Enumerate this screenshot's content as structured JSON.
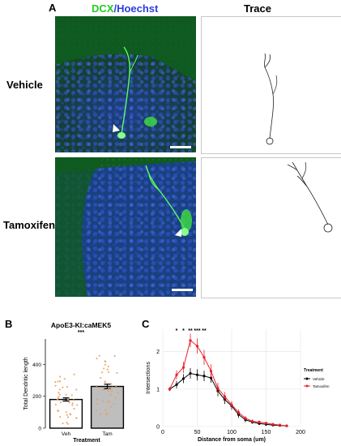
{
  "panel_a": {
    "letter": "A",
    "stain_label_green": "DCX",
    "stain_label_sep": "/",
    "stain_label_blue": "Hoechst",
    "trace_label": "Trace",
    "rows": [
      {
        "label": "Vehicle"
      },
      {
        "label": "Tamoxifen"
      }
    ],
    "colors": {
      "green": "#22cc22",
      "blue": "#2a3fd8"
    }
  },
  "panel_b": {
    "letter": "B"
  },
  "panel_c": {
    "letter": "C"
  },
  "chart_data": [
    {
      "type": "bar",
      "title": "ApoE3-KI:caMEK5",
      "significance": "***",
      "xlabel": "Treatment",
      "ylabel": "Total Dendritic length",
      "categories": [
        "Veh",
        "Tam"
      ],
      "values": [
        180,
        262
      ],
      "errors": [
        10,
        14
      ],
      "bar_colors": [
        "#ffffff",
        "#bebebe"
      ],
      "point_color": "#e8a060",
      "ylim": [
        0,
        560
      ],
      "yticks": [
        0,
        200,
        400
      ]
    },
    {
      "type": "line",
      "xlabel": "Distance from soma (um)",
      "ylabel": "Intersections",
      "xlim": [
        0,
        200
      ],
      "ylim": [
        0,
        2.6
      ],
      "xticks": [
        0,
        50,
        100,
        150,
        200
      ],
      "yticks": [
        0,
        1,
        2
      ],
      "significance_marks": [
        {
          "x": 20,
          "label": "*"
        },
        {
          "x": 30,
          "label": "*"
        },
        {
          "x": 40,
          "label": "**"
        },
        {
          "x": 50,
          "label": "***"
        },
        {
          "x": 60,
          "label": "**"
        }
      ],
      "legend": {
        "title": "Treatment",
        "position": "right"
      },
      "series": [
        {
          "name": "Vehicle",
          "color": "#000000",
          "x": [
            10,
            20,
            30,
            40,
            50,
            60,
            70,
            80,
            90,
            100,
            110,
            120,
            130,
            140,
            150,
            160,
            170,
            180
          ],
          "y": [
            1.0,
            1.12,
            1.28,
            1.42,
            1.38,
            1.35,
            1.3,
            0.95,
            0.72,
            0.55,
            0.32,
            0.18,
            0.12,
            0.08,
            0.06,
            0.04,
            0.03,
            0.02
          ],
          "err": [
            0.05,
            0.1,
            0.12,
            0.14,
            0.15,
            0.14,
            0.13,
            0.14,
            0.12,
            0.1,
            0.09,
            0.06,
            0.05,
            0.04,
            0.04,
            0.03,
            0.03,
            0.02
          ]
        },
        {
          "name": "Tamoxifen",
          "color": "#e8202a",
          "x": [
            10,
            20,
            30,
            40,
            50,
            60,
            70,
            80,
            90,
            100,
            110,
            120,
            130,
            140,
            150,
            160,
            170,
            180
          ],
          "y": [
            1.0,
            1.38,
            1.58,
            2.3,
            2.15,
            1.85,
            1.48,
            1.02,
            0.8,
            0.58,
            0.38,
            0.22,
            0.14,
            0.12,
            0.09,
            0.06,
            0.04,
            0.02
          ],
          "err": [
            0.05,
            0.12,
            0.15,
            0.18,
            0.2,
            0.2,
            0.18,
            0.15,
            0.12,
            0.1,
            0.08,
            0.06,
            0.05,
            0.04,
            0.04,
            0.03,
            0.03,
            0.02
          ]
        }
      ]
    }
  ]
}
